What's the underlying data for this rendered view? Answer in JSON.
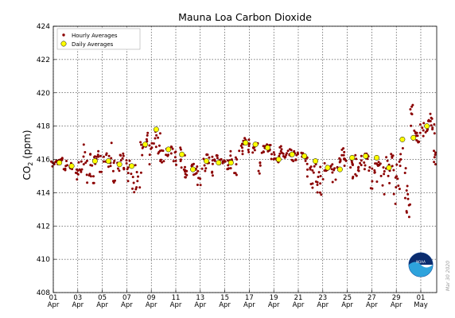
{
  "chart_data": {
    "type": "scatter",
    "title": "Mauna Loa Carbon Dioxide",
    "ylabel": "CO",
    "ylabel_sub": "2",
    "ylabel_unit": " (ppm)",
    "xlabel": "",
    "ylim": [
      408,
      424
    ],
    "yticks": [
      "408",
      "410",
      "412",
      "414",
      "416",
      "418",
      "420",
      "422",
      "424"
    ],
    "xlim": [
      1,
      32.3
    ],
    "xticks": [
      {
        "x": 1,
        "day": "01",
        "month": "Apr"
      },
      {
        "x": 3,
        "day": "03",
        "month": "Apr"
      },
      {
        "x": 5,
        "day": "05",
        "month": "Apr"
      },
      {
        "x": 7,
        "day": "07",
        "month": "Apr"
      },
      {
        "x": 9,
        "day": "09",
        "month": "Apr"
      },
      {
        "x": 11,
        "day": "11",
        "month": "Apr"
      },
      {
        "x": 13,
        "day": "13",
        "month": "Apr"
      },
      {
        "x": 15,
        "day": "15",
        "month": "Apr"
      },
      {
        "x": 17,
        "day": "17",
        "month": "Apr"
      },
      {
        "x": 19,
        "day": "19",
        "month": "Apr"
      },
      {
        "x": 21,
        "day": "21",
        "month": "Apr"
      },
      {
        "x": 23,
        "day": "23",
        "month": "Apr"
      },
      {
        "x": 25,
        "day": "25",
        "month": "Apr"
      },
      {
        "x": 27,
        "day": "27",
        "month": "Apr"
      },
      {
        "x": 29,
        "day": "29",
        "month": "Apr"
      },
      {
        "x": 31,
        "day": "01",
        "month": "May"
      }
    ],
    "grid": true,
    "legend_position": "top-left",
    "series": [
      {
        "name": "Hourly Averages",
        "color": "#8b0000",
        "marker": "small-dot"
      },
      {
        "name": "Daily Averages",
        "color": "#ffff00",
        "edge": "#000000",
        "marker": "large-dot"
      }
    ],
    "daily": [
      [
        1.5,
        415.8
      ],
      [
        2.5,
        415.6
      ],
      [
        4.4,
        415.9
      ],
      [
        5.5,
        415.9
      ],
      [
        6.4,
        415.7
      ],
      [
        7.4,
        415.6
      ],
      [
        8.5,
        416.9
      ],
      [
        9.4,
        417.8
      ],
      [
        10.4,
        416.6
      ],
      [
        11.5,
        416.3
      ],
      [
        12.4,
        415.4
      ],
      [
        13.5,
        415.9
      ],
      [
        14.5,
        415.8
      ],
      [
        15.5,
        415.8
      ],
      [
        16.7,
        417.0
      ],
      [
        17.5,
        416.9
      ],
      [
        18.5,
        416.7
      ],
      [
        19.4,
        416.0
      ],
      [
        20.5,
        416.3
      ],
      [
        21.5,
        416.2
      ],
      [
        22.4,
        415.9
      ],
      [
        23.4,
        415.5
      ],
      [
        24.4,
        415.4
      ],
      [
        25.4,
        416.1
      ],
      [
        26.5,
        416.2
      ],
      [
        27.4,
        416.1
      ],
      [
        28.4,
        415.5
      ],
      [
        29.5,
        417.2
      ],
      [
        30.4,
        417.3
      ],
      [
        31.5,
        418.0
      ]
    ],
    "hourly_ranges": [
      [
        1.0,
        415.5,
        415.9
      ],
      [
        1.3,
        415.7,
        416.0
      ],
      [
        1.6,
        415.9,
        416.1
      ],
      [
        2.0,
        415.2,
        416.0
      ],
      [
        2.4,
        415.4,
        415.8
      ],
      [
        2.9,
        414.5,
        415.8
      ],
      [
        3.2,
        415.0,
        416.0
      ],
      [
        3.6,
        415.6,
        417.0
      ],
      [
        3.9,
        414.6,
        416.5
      ],
      [
        4.2,
        414.2,
        415.8
      ],
      [
        4.5,
        415.6,
        416.2
      ],
      [
        4.8,
        415.2,
        416.6
      ],
      [
        5.2,
        415.5,
        416.4
      ],
      [
        5.6,
        414.9,
        417.0
      ],
      [
        5.9,
        414.4,
        416.0
      ],
      [
        6.3,
        415.3,
        416.2
      ],
      [
        6.6,
        415.8,
        416.4
      ],
      [
        6.9,
        415.4,
        416.0
      ],
      [
        7.2,
        414.5,
        416.0
      ],
      [
        7.6,
        413.8,
        415.7
      ],
      [
        7.9,
        414.2,
        415.8
      ],
      [
        8.2,
        415.0,
        417.2
      ],
      [
        8.6,
        416.2,
        417.6
      ],
      [
        8.9,
        415.6,
        417.0
      ],
      [
        9.3,
        416.6,
        418.1
      ],
      [
        9.6,
        416.0,
        417.9
      ],
      [
        9.9,
        415.8,
        416.6
      ],
      [
        10.3,
        416.2,
        416.8
      ],
      [
        10.6,
        416.3,
        416.9
      ],
      [
        10.9,
        415.6,
        416.9
      ],
      [
        11.3,
        415.8,
        416.8
      ],
      [
        11.6,
        415.2,
        416.4
      ],
      [
        11.9,
        414.9,
        415.6
      ],
      [
        12.3,
        415.2,
        415.7
      ],
      [
        12.6,
        415.0,
        416.0
      ],
      [
        12.9,
        414.4,
        415.8
      ],
      [
        13.3,
        415.3,
        416.1
      ],
      [
        13.6,
        415.5,
        416.4
      ],
      [
        13.9,
        414.8,
        416.2
      ],
      [
        14.3,
        415.9,
        416.3
      ],
      [
        14.6,
        415.6,
        416.1
      ],
      [
        14.9,
        415.7,
        416.0
      ],
      [
        15.3,
        415.3,
        416.3
      ],
      [
        15.6,
        415.4,
        416.7
      ],
      [
        15.9,
        414.9,
        416.3
      ],
      [
        16.3,
        416.3,
        417.0
      ],
      [
        16.6,
        416.9,
        417.3
      ],
      [
        16.9,
        416.4,
        417.2
      ],
      [
        17.3,
        416.4,
        416.9
      ],
      [
        17.6,
        416.8,
        417.0
      ],
      [
        17.9,
        414.6,
        416.5
      ],
      [
        18.3,
        416.3,
        416.9
      ],
      [
        18.6,
        416.4,
        417.0
      ],
      [
        18.9,
        416.0,
        416.6
      ],
      [
        19.3,
        415.8,
        416.2
      ],
      [
        19.6,
        416.1,
        416.8
      ],
      [
        19.9,
        416.1,
        416.6
      ],
      [
        20.3,
        416.2,
        416.7
      ],
      [
        20.6,
        415.9,
        416.6
      ],
      [
        20.9,
        415.8,
        416.5
      ],
      [
        21.3,
        416.0,
        416.4
      ],
      [
        21.6,
        415.6,
        416.3
      ],
      [
        21.9,
        414.5,
        416.1
      ],
      [
        22.3,
        413.6,
        415.9
      ],
      [
        22.6,
        414.0,
        415.5
      ],
      [
        22.9,
        413.8,
        415.6
      ],
      [
        23.3,
        415.2,
        415.8
      ],
      [
        23.6,
        415.4,
        415.7
      ],
      [
        23.9,
        414.6,
        415.8
      ],
      [
        24.3,
        415.0,
        416.3
      ],
      [
        24.6,
        415.5,
        416.9
      ],
      [
        24.9,
        415.6,
        416.4
      ],
      [
        25.3,
        415.5,
        416.1
      ],
      [
        25.6,
        414.8,
        416.3
      ],
      [
        25.9,
        414.3,
        416.3
      ],
      [
        26.3,
        415.4,
        416.6
      ],
      [
        26.6,
        416.0,
        416.4
      ],
      [
        26.9,
        414.2,
        416.2
      ],
      [
        27.3,
        414.6,
        415.8
      ],
      [
        27.6,
        415.6,
        416.0
      ],
      [
        27.9,
        413.6,
        415.9
      ],
      [
        28.3,
        414.5,
        416.4
      ],
      [
        28.6,
        415.2,
        416.4
      ],
      [
        28.9,
        412.8,
        415.8
      ],
      [
        29.2,
        414.0,
        416.3
      ],
      [
        29.5,
        415.6,
        417.3
      ],
      [
        29.8,
        413.6,
        415.5
      ],
      [
        30.0,
        411.9,
        413.8
      ],
      [
        30.2,
        418.0,
        419.4
      ],
      [
        30.5,
        416.5,
        417.8
      ],
      [
        30.8,
        417.0,
        417.8
      ],
      [
        31.1,
        417.2,
        418.2
      ],
      [
        31.4,
        417.6,
        418.4
      ],
      [
        31.7,
        417.7,
        418.9
      ],
      [
        32.0,
        417.4,
        418.7
      ],
      [
        32.2,
        415.2,
        416.8
      ]
    ]
  },
  "stamp": "Mar 30 2020",
  "logo_label": "NOAA"
}
